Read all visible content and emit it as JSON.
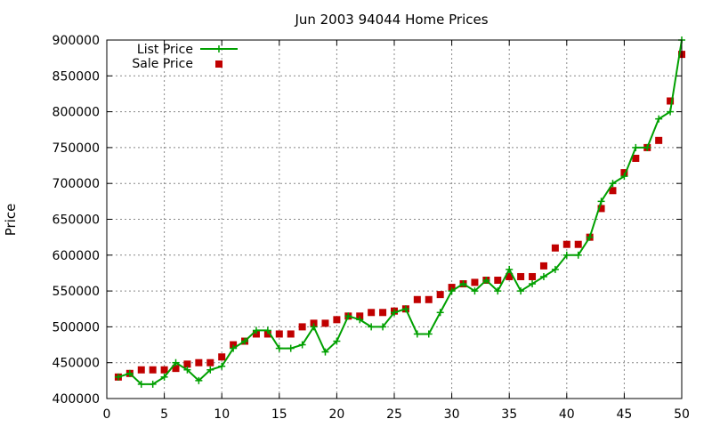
{
  "chart_data": {
    "type": "line",
    "title": "Jun 2003 94044 Home Prices",
    "xlabel": "",
    "ylabel": "Price",
    "xlim": [
      0,
      50
    ],
    "ylim": [
      400000,
      900000
    ],
    "xticks": [
      "0",
      "5",
      "10",
      "15",
      "20",
      "25",
      "30",
      "35",
      "40",
      "45",
      "50"
    ],
    "yticks": [
      "400000",
      "450000",
      "500000",
      "550000",
      "600000",
      "650000",
      "700000",
      "750000",
      "800000",
      "850000",
      "900000"
    ],
    "grid": true,
    "legend_position": "top-left",
    "series": [
      {
        "name": "List Price",
        "color": "#00a000",
        "style": "line-plus",
        "x": [
          1,
          2,
          3,
          4,
          5,
          6,
          7,
          8,
          9,
          10,
          11,
          12,
          13,
          14,
          15,
          16,
          17,
          18,
          19,
          20,
          21,
          22,
          23,
          24,
          25,
          26,
          27,
          28,
          29,
          30,
          31,
          32,
          33,
          34,
          35,
          36,
          37,
          38,
          39,
          40,
          41,
          42,
          43,
          44,
          45,
          46,
          47,
          48,
          49,
          50
        ],
        "y": [
          430000,
          435000,
          420000,
          420000,
          430000,
          450000,
          440000,
          425000,
          440000,
          445000,
          470000,
          480000,
          495000,
          495000,
          470000,
          470000,
          475000,
          500000,
          465000,
          480000,
          515000,
          510000,
          500000,
          500000,
          520000,
          525000,
          490000,
          490000,
          520000,
          550000,
          560000,
          550000,
          565000,
          550000,
          580000,
          550000,
          560000,
          570000,
          580000,
          600000,
          600000,
          625000,
          675000,
          700000,
          710000,
          750000,
          750000,
          790000,
          800000,
          900000
        ]
      },
      {
        "name": "Sale Price",
        "color": "#c00000",
        "style": "square",
        "x": [
          1,
          2,
          3,
          4,
          5,
          6,
          7,
          8,
          9,
          10,
          11,
          12,
          13,
          14,
          15,
          16,
          17,
          18,
          19,
          20,
          21,
          22,
          23,
          24,
          25,
          26,
          27,
          28,
          29,
          30,
          31,
          32,
          33,
          34,
          35,
          36,
          37,
          38,
          39,
          40,
          41,
          42,
          43,
          44,
          45,
          46,
          47,
          48,
          49,
          50
        ],
        "y": [
          430000,
          435000,
          440000,
          440000,
          440000,
          442000,
          448000,
          450000,
          450000,
          458000,
          475000,
          480000,
          490000,
          490000,
          490000,
          490000,
          500000,
          505000,
          505000,
          510000,
          515000,
          515000,
          520000,
          520000,
          522000,
          525000,
          538000,
          538000,
          545000,
          555000,
          560000,
          562000,
          565000,
          565000,
          570000,
          570000,
          570000,
          585000,
          610000,
          615000,
          615000,
          625000,
          665000,
          690000,
          715000,
          735000,
          750000,
          760000,
          815000,
          880000
        ]
      }
    ]
  }
}
